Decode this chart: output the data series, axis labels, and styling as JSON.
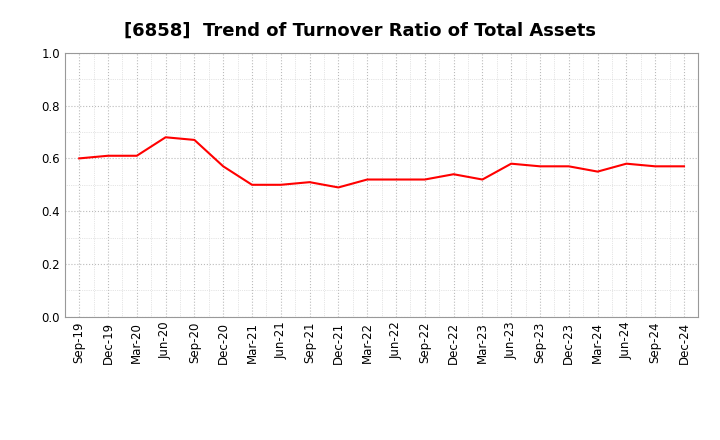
{
  "title": "[6858]  Trend of Turnover Ratio of Total Assets",
  "x_labels": [
    "Sep-19",
    "Dec-19",
    "Mar-20",
    "Jun-20",
    "Sep-20",
    "Dec-20",
    "Mar-21",
    "Jun-21",
    "Sep-21",
    "Dec-21",
    "Mar-22",
    "Jun-22",
    "Sep-22",
    "Dec-22",
    "Mar-23",
    "Jun-23",
    "Sep-23",
    "Dec-23",
    "Mar-24",
    "Jun-24",
    "Sep-24",
    "Dec-24"
  ],
  "y_values": [
    0.6,
    0.61,
    0.61,
    0.68,
    0.67,
    0.57,
    0.5,
    0.5,
    0.51,
    0.49,
    0.52,
    0.52,
    0.52,
    0.54,
    0.52,
    0.58,
    0.57,
    0.57,
    0.55,
    0.58,
    0.57,
    0.57
  ],
  "line_color": "#FF0000",
  "line_width": 1.5,
  "ylim": [
    0.0,
    1.0
  ],
  "yticks": [
    0.0,
    0.2,
    0.4,
    0.6,
    0.8,
    1.0
  ],
  "background_color": "#ffffff",
  "grid_color_major": "#bbbbbb",
  "grid_color_minor": "#cccccc",
  "title_fontsize": 13,
  "tick_fontsize": 8.5
}
